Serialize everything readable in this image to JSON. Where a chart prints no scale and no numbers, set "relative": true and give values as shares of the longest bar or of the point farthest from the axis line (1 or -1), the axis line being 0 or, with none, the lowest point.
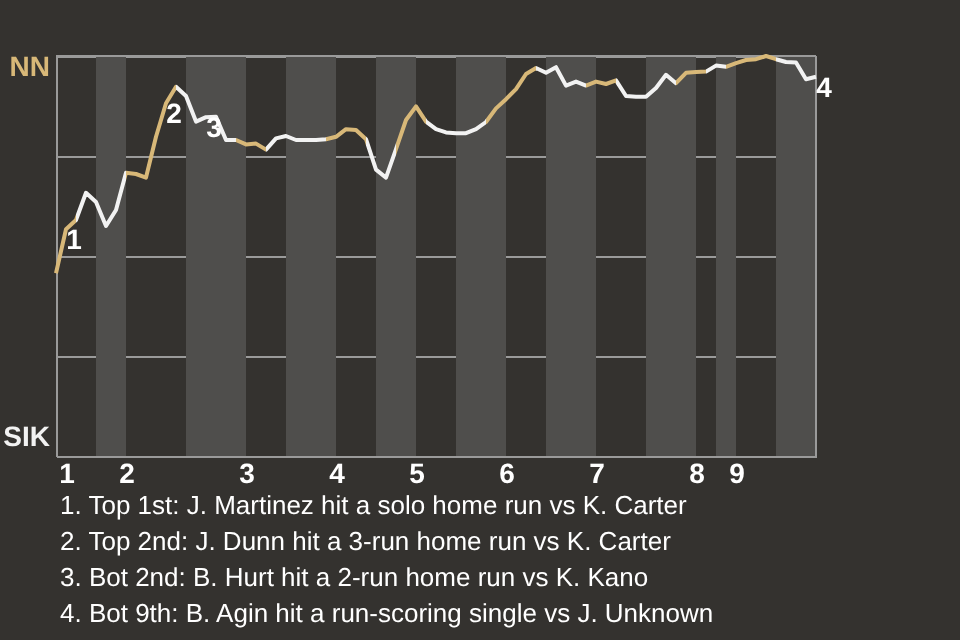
{
  "chart_data": {
    "type": "line",
    "relative": true,
    "categories": [
      null,
      "1",
      null,
      null,
      null,
      null,
      null,
      "2",
      null,
      null,
      null,
      null,
      null,
      null,
      null,
      null,
      null,
      null,
      null,
      "3",
      null,
      null,
      null,
      null,
      null,
      null,
      null,
      null,
      "4",
      null,
      null,
      null,
      null,
      null,
      null,
      null,
      "5",
      null,
      null,
      null,
      null,
      null,
      null,
      null,
      null,
      "6",
      null,
      null,
      null,
      null,
      null,
      null,
      null,
      null,
      "7",
      null,
      null,
      null,
      null,
      null,
      null,
      null,
      null,
      null,
      "8",
      null,
      null,
      null,
      "9",
      null,
      null,
      null,
      null,
      null,
      null,
      null,
      null
    ],
    "values": [
      0.457,
      0.567,
      0.59,
      0.658,
      0.635,
      0.575,
      0.615,
      0.708,
      0.705,
      0.696,
      0.798,
      0.882,
      0.923,
      0.9,
      0.836,
      0.847,
      0.848,
      0.79,
      0.79,
      0.779,
      0.781,
      0.766,
      0.794,
      0.8,
      0.79,
      0.79,
      0.79,
      0.792,
      0.798,
      0.817,
      0.815,
      0.792,
      0.716,
      0.696,
      0.767,
      0.84,
      0.874,
      0.836,
      0.817,
      0.809,
      0.807,
      0.807,
      0.817,
      0.835,
      0.869,
      0.892,
      0.917,
      0.955,
      0.97,
      0.958,
      0.972,
      0.926,
      0.936,
      0.926,
      0.936,
      0.93,
      0.939,
      0.9,
      0.898,
      0.898,
      0.92,
      0.953,
      0.932,
      0.958,
      0.96,
      0.961,
      0.976,
      0.973,
      0.982,
      0.99,
      0.992,
      1,
      0.992,
      0.985,
      0.984,
      0.942,
      0.948
    ],
    "colors": [
      "#d8b878",
      "#d8b878",
      "#f2f2f2",
      "#f2f2f2",
      "#f2f2f2",
      "#f2f2f2",
      "#f2f2f2",
      "#d8b878",
      "#d8b878",
      "#d8b878",
      "#d8b878",
      "#d8b878",
      "#f2f2f2",
      "#f2f2f2",
      "#f2f2f2",
      "#f2f2f2",
      "#f2f2f2",
      "#f2f2f2",
      "#d8b878",
      "#d8b878",
      "#d8b878",
      "#f2f2f2",
      "#f2f2f2",
      "#f2f2f2",
      "#f2f2f2",
      "#f2f2f2",
      "#f2f2f2",
      "#d8b878",
      "#d8b878",
      "#d8b878",
      "#d8b878",
      "#f2f2f2",
      "#f2f2f2",
      "#f2f2f2",
      "#d8b878",
      "#d8b878",
      "#d8b878",
      "#f2f2f2",
      "#f2f2f2",
      "#f2f2f2",
      "#f2f2f2",
      "#f2f2f2",
      "#f2f2f2",
      "#d8b878",
      "#d8b878",
      "#d8b878",
      "#d8b878",
      "#d8b878",
      "#f2f2f2",
      "#f2f2f2",
      "#f2f2f2",
      "#f2f2f2",
      "#f2f2f2",
      "#d8b878",
      "#d8b878",
      "#d8b878",
      "#f2f2f2",
      "#f2f2f2",
      "#f2f2f2",
      "#f2f2f2",
      "#f2f2f2",
      "#f2f2f2",
      "#d8b878",
      "#d8b878",
      "#d8b878",
      "#f2f2f2",
      "#f2f2f2",
      "#d8b878",
      "#d8b878",
      "#d8b878",
      "#d8b878",
      "#d8b878",
      "#f2f2f2",
      "#f2f2f2",
      "#f2f2f2",
      "#f2f2f2",
      "#f2f2f2"
    ],
    "grid": "y",
    "legend": false,
    "marker": "none",
    "annotations": [
      "NN",
      "SIK",
      {
        "text": "1",
        "y": 0.567
      },
      {
        "text": "2",
        "y": 0.882
      },
      {
        "text": "3",
        "y": 0.847
      },
      {
        "text": "4",
        "y": 0.948
      },
      "1. Top 1st: J. Martinez hit a solo home run vs K. Carter",
      "2. Top 2nd: J. Dunn hit a 3-run home run vs K. Carter",
      "3. Bot 2nd: B. Hurt hit a 2-run home run vs K. Kano",
      "4. Bot 9th: B. Agin hit a run-scoring single vs J. Unknown"
    ]
  }
}
